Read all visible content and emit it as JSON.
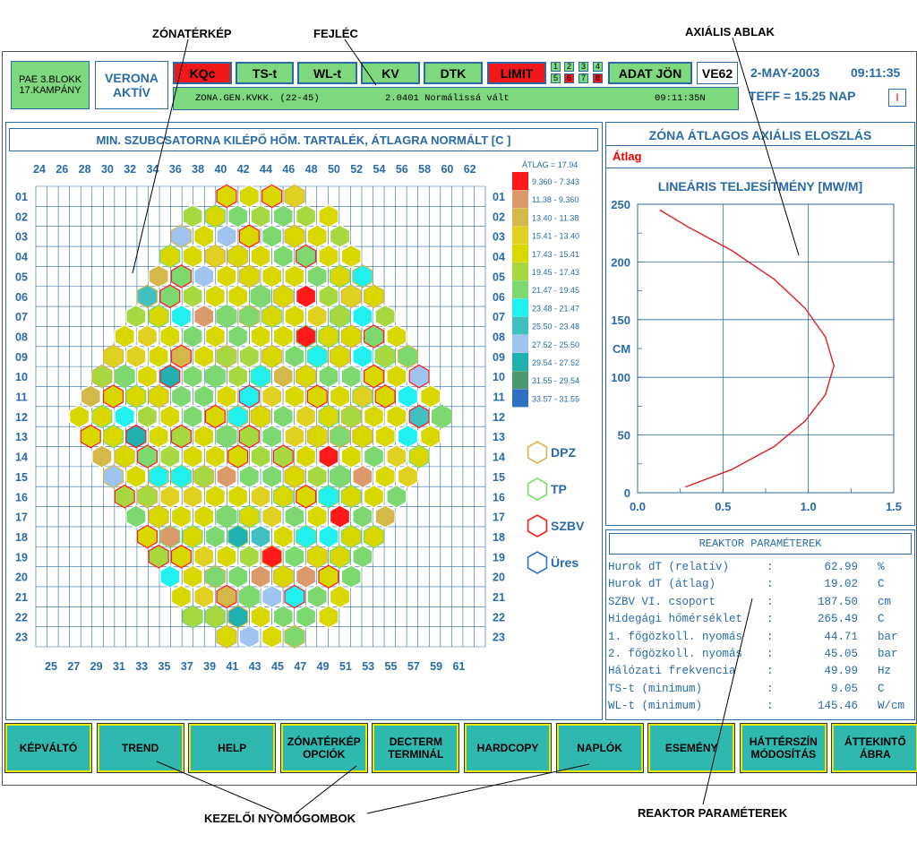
{
  "callouts": {
    "zona": "ZÓNATÉRKÉP",
    "fejlec": "FEJLÉC",
    "axialis": "AXIÁLIS ABLAK",
    "kezeloi": "KEZELŐI NYOMÓGOMBOK",
    "reaktor": "REAKTOR PARAMÉTEREK"
  },
  "header": {
    "plant_line1": "PAE 3.BLOKK",
    "plant_line2": "17.KAMPÁNY",
    "verona_line1": "VERONA",
    "verona_line2": "AKTÍV",
    "buttons": [
      "KQc",
      "TS-t",
      "WL-t",
      "KV",
      "DTK",
      "LIMIT",
      "ADAT JÖN",
      "VE62"
    ],
    "mini_top": [
      "1",
      "2",
      "3",
      "4"
    ],
    "mini_bottom": [
      "5",
      "6",
      "7",
      "8"
    ],
    "date": "2-MAY-2003",
    "time": "09:11:35",
    "teff": "TEFF = 15.25 NAP",
    "indicator": "I",
    "message_left": "ZONA.GEN.KVKK. (22-45)",
    "message_mid": "2.0401  Normálissá vált",
    "message_right": "09:11:35N"
  },
  "map": {
    "title": "MIN. SZUBCSATORNA KILÉPŐ HŐM. TARTALÉK, ÁTLAGRA NORMÁLT  [C ]",
    "top_cols": [
      "24",
      "26",
      "28",
      "30",
      "32",
      "34",
      "36",
      "38",
      "40",
      "42",
      "44",
      "46",
      "48",
      "50",
      "52",
      "54",
      "56",
      "58",
      "60",
      "62"
    ],
    "bottom_cols": [
      "25",
      "27",
      "29",
      "31",
      "33",
      "35",
      "37",
      "39",
      "41",
      "43",
      "45",
      "47",
      "49",
      "51",
      "53",
      "55",
      "57",
      "59",
      "61"
    ],
    "rows": [
      "01",
      "02",
      "03",
      "04",
      "05",
      "06",
      "07",
      "08",
      "09",
      "10",
      "11",
      "12",
      "13",
      "14",
      "15",
      "16",
      "17",
      "18",
      "19",
      "20",
      "21",
      "22",
      "23"
    ],
    "avg_label": "ÁTLAG = 17.94",
    "legend": [
      {
        "range": "9.360 - 7.343",
        "color": "#ff1a1a"
      },
      {
        "range": "11.38 - 9.360",
        "color": "#dc9a6a"
      },
      {
        "range": "13.40 - 11.38",
        "color": "#d4b84a"
      },
      {
        "range": "15.41 - 13.40",
        "color": "#e0d020"
      },
      {
        "range": "17.43 - 15.41",
        "color": "#d8d800"
      },
      {
        "range": "19.45 - 17.43",
        "color": "#a8d840"
      },
      {
        "range": "21.47 - 19.45",
        "color": "#7ed870"
      },
      {
        "range": "23.48 - 21.47",
        "color": "#20f0f0"
      },
      {
        "range": "25.50 - 23.48",
        "color": "#40c0c0"
      },
      {
        "range": "27.52 - 25.50",
        "color": "#a0c4f0"
      },
      {
        "range": "29.54 - 27.52",
        "color": "#20b0b0"
      },
      {
        "range": "31.55 - 29.54",
        "color": "#4a9a70"
      },
      {
        "range": "33.57 - 31.55",
        "color": "#3070c0"
      }
    ],
    "markers": [
      {
        "label": "DPZ",
        "color": "#d4b84a"
      },
      {
        "label": "TP",
        "color": "#7ed870"
      },
      {
        "label": "SZBV",
        "color": "#ff1a1a"
      },
      {
        "label": "Üres",
        "color": "#3070c0"
      }
    ]
  },
  "axial": {
    "title": "ZÓNA ÁTLAGOS AXIÁLIS ELOSZLÁS",
    "tab": "Átlag",
    "subtitle": "LINEÁRIS TELJESÍTMÉNY [MW/M]",
    "y_ticks": [
      "250",
      "200",
      "150",
      "100",
      "50",
      "0"
    ],
    "y_unit": "CM",
    "x_ticks": [
      "0.0",
      "0.5",
      "1.0",
      "1.5"
    ]
  },
  "chart_data": {
    "type": "line",
    "title": "LINEÁRIS TELJESÍTMÉNY [MW/M]",
    "ylabel": "CM",
    "xlim": [
      0,
      1.5
    ],
    "ylim": [
      0,
      250
    ],
    "series": [
      {
        "x": [
          0.13,
          0.3,
          0.55,
          0.8,
          0.98,
          1.1,
          1.15,
          1.1,
          0.98,
          0.8,
          0.55,
          0.28
        ],
        "y": [
          245,
          230,
          210,
          185,
          160,
          135,
          110,
          85,
          62,
          40,
          20,
          5
        ]
      }
    ],
    "color": "#e02020",
    "grid": true
  },
  "params": {
    "title": "REAKTOR PARAMÉTEREK",
    "rows": [
      {
        "name": "Hurok dT (relatív)",
        "value": "62.99",
        "unit": "%"
      },
      {
        "name": "Hurok dT (átlag)",
        "value": "19.02",
        "unit": "C"
      },
      {
        "name": "SZBV VI. csoport",
        "value": "187.50",
        "unit": "cm"
      },
      {
        "name": "Hidegági hőmérséklet",
        "value": "265.49",
        "unit": "C"
      },
      {
        "name": "1. főgözkoll. nyomás",
        "value": "44.71",
        "unit": "bar"
      },
      {
        "name": "2. főgözkoll. nyomás",
        "value": "45.05",
        "unit": "bar"
      },
      {
        "name": "Hálózati frekvencia",
        "value": "49.99",
        "unit": "Hz"
      },
      {
        "name": "TS-t (minimum)",
        "value": "9.05",
        "unit": "C"
      },
      {
        "name": "WL-t (minimum)",
        "value": "145.46",
        "unit": "W/cm"
      }
    ]
  },
  "footer_buttons": [
    "KÉPVÁLTÓ",
    "TREND",
    "HELP",
    "ZÓNATÉRKÉP\nOPCIÓK",
    "DECTERM\nTERMINÁL",
    "HARDCOPY",
    "NAPLÓK",
    "ESEMÉNY",
    "HÁTTÉRSZÍN\nMÓDOSÍTÁS",
    "ÁTTEKINTŐ\nÁBRA"
  ]
}
